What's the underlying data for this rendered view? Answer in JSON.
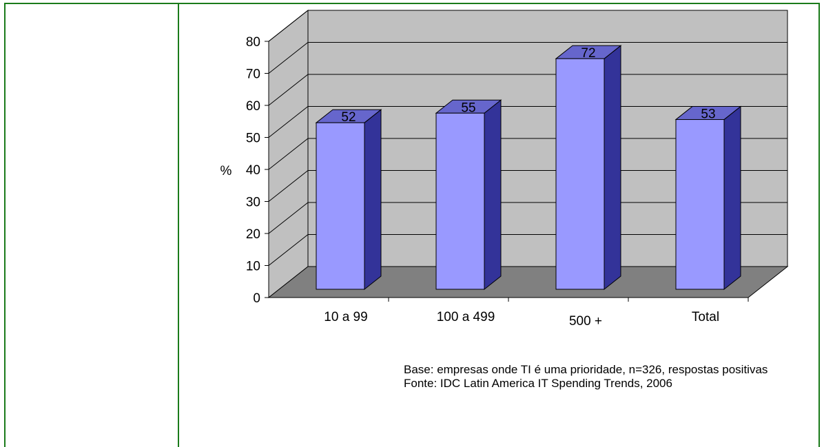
{
  "chart_data": {
    "type": "bar",
    "style": "3d",
    "categories": [
      "10 a 99",
      "100 a 499",
      "500 +",
      "Total"
    ],
    "values": [
      52,
      55,
      72,
      53
    ],
    "data_labels": [
      "52",
      "55",
      "72",
      "53"
    ],
    "ylabel": "%",
    "ylim": [
      0,
      80
    ],
    "yticks": [
      0,
      10,
      20,
      30,
      40,
      50,
      60,
      70,
      80
    ],
    "grid": true,
    "legend": "none",
    "colors": {
      "bar_front": "#9999ff",
      "bar_side": "#333399",
      "bar_top": "#6666cc",
      "wall": "#c0c0c0",
      "floor": "#808080"
    }
  },
  "notes": {
    "base": "Base: empresas onde TI é uma prioridade, n=326, respostas positivas",
    "source": "Fonte: IDC Latin America IT Spending Trends, 2006"
  }
}
